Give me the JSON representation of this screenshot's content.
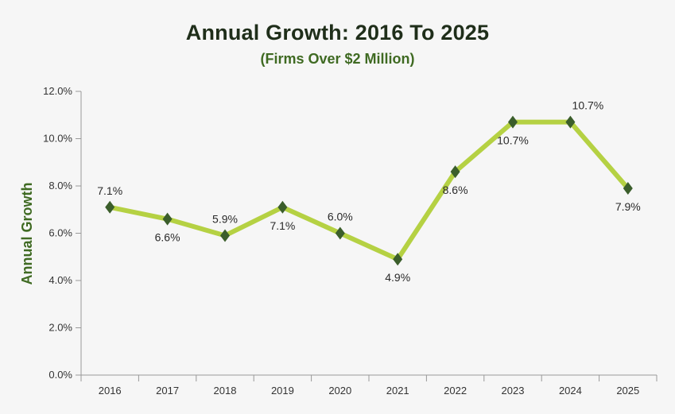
{
  "chart_data": {
    "type": "line",
    "title": "Annual Growth: 2016 To 2025",
    "subtitle": "(Firms Over $2 Million)",
    "xlabel": "",
    "ylabel": "Annual Growth",
    "categories": [
      "2016",
      "2017",
      "2018",
      "2019",
      "2020",
      "2021",
      "2022",
      "2023",
      "2024",
      "2025"
    ],
    "series": [
      {
        "name": "Annual Growth",
        "values": [
          7.1,
          6.6,
          5.9,
          7.1,
          6.0,
          4.9,
          8.6,
          10.7,
          10.7,
          7.9
        ],
        "labels": [
          "7.1%",
          "6.6%",
          "5.9%",
          "7.1%",
          "6.0%",
          "4.9%",
          "8.6%",
          "10.7%",
          "10.7%",
          "7.9%"
        ],
        "label_positions": [
          "above",
          "below",
          "above",
          "below",
          "above",
          "below",
          "below",
          "below",
          "above",
          "below"
        ],
        "line_color": "#b5d143",
        "marker_color": "#3b5e2b",
        "marker": "diamond"
      }
    ],
    "ylim": [
      0,
      12
    ],
    "yticks": [
      0,
      2,
      4,
      6,
      8,
      10,
      12
    ],
    "ytick_labels": [
      "0.0%",
      "2.0%",
      "4.0%",
      "6.0%",
      "8.0%",
      "10.0%",
      "12.0%"
    ],
    "grid": false,
    "legend": "none"
  },
  "colors": {
    "title": "#1f2e1a",
    "subtitle": "#3f6a22",
    "axis": "#999999"
  }
}
